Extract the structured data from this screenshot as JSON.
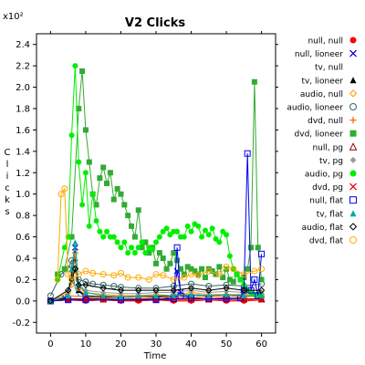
{
  "chart_data": {
    "type": "line",
    "title": "V2 Clicks",
    "xlabel": "Time",
    "ylabel": "Clicks",
    "y_multiplier": "x10²",
    "xlim": [
      -4,
      64
    ],
    "ylim": [
      -0.3,
      2.5
    ],
    "xticks": [
      0,
      10,
      20,
      30,
      40,
      50,
      60
    ],
    "yticks": [
      -0.2,
      0.0,
      0.2,
      0.4,
      0.6,
      0.8,
      1.0,
      1.2,
      1.4,
      1.6,
      1.8,
      2.0,
      2.2,
      2.4
    ],
    "grid": false,
    "legend_position": "right",
    "series": [
      {
        "name": "null, null",
        "color": "#ff0000",
        "marker": "dot",
        "x": [
          0,
          5,
          10,
          15,
          20,
          25,
          30,
          35,
          40,
          45,
          50,
          55,
          60
        ],
        "y": [
          0.0,
          0.01,
          0.0,
          0.01,
          0.0,
          0.0,
          0.01,
          0.0,
          0.0,
          0.01,
          0.0,
          0.0,
          0.01
        ]
      },
      {
        "name": "null, lioneer",
        "color": "#0000dd",
        "marker": "x",
        "x": [
          0,
          4,
          6,
          7,
          8,
          10,
          15,
          20,
          25,
          30,
          35,
          36,
          37,
          40,
          45,
          50,
          55,
          60
        ],
        "y": [
          0.0,
          0.03,
          0.18,
          0.5,
          0.1,
          0.02,
          0.02,
          0.01,
          0.02,
          0.01,
          0.04,
          0.28,
          0.08,
          0.03,
          0.02,
          0.02,
          0.02,
          0.02
        ]
      },
      {
        "name": "tv, null",
        "color": "#00aaaa",
        "marker": "square",
        "x": [
          0,
          5,
          6,
          7,
          8,
          10,
          15,
          20,
          25,
          30,
          35,
          40,
          45,
          50,
          55,
          60
        ],
        "y": [
          0.0,
          0.03,
          0.35,
          0.12,
          0.05,
          0.03,
          0.02,
          0.02,
          0.02,
          0.02,
          0.02,
          0.03,
          0.02,
          0.02,
          0.02,
          0.02
        ]
      },
      {
        "name": "tv, lioneer",
        "color": "#000000",
        "marker": "triangle",
        "x": [
          0,
          5,
          6,
          7,
          8,
          10,
          15,
          20,
          25,
          30,
          35,
          40,
          45,
          50,
          55,
          60
        ],
        "y": [
          0.01,
          0.03,
          0.25,
          0.4,
          0.1,
          0.05,
          0.04,
          0.03,
          0.04,
          0.04,
          0.05,
          0.06,
          0.05,
          0.06,
          0.05,
          0.05
        ]
      },
      {
        "name": "audio, null",
        "color": "#ff9900",
        "marker": "diamond-open",
        "x": [
          0,
          5,
          6,
          7,
          8,
          10,
          15,
          20,
          25,
          30,
          35,
          40,
          45,
          50,
          55,
          60
        ],
        "y": [
          0.0,
          0.08,
          0.15,
          0.45,
          0.12,
          0.08,
          0.06,
          0.05,
          0.05,
          0.06,
          0.05,
          0.08,
          0.06,
          0.06,
          0.06,
          0.06
        ]
      },
      {
        "name": "audio, lioneer",
        "color": "#336666",
        "marker": "circle-open",
        "x": [
          0,
          3,
          5,
          6,
          7,
          8,
          10,
          12,
          15,
          18,
          20,
          25,
          30,
          35,
          40,
          45,
          50,
          55,
          60
        ],
        "y": [
          0.05,
          0.25,
          0.3,
          0.38,
          0.3,
          0.2,
          0.18,
          0.16,
          0.15,
          0.14,
          0.13,
          0.12,
          0.12,
          0.14,
          0.16,
          0.14,
          0.15,
          0.14,
          0.16
        ]
      },
      {
        "name": "dvd, null",
        "color": "#ff6600",
        "marker": "plus",
        "x": [
          0,
          5,
          10,
          15,
          20,
          25,
          30,
          35,
          40,
          45,
          50,
          55,
          60
        ],
        "y": [
          0.0,
          0.05,
          0.04,
          0.03,
          0.03,
          0.04,
          0.03,
          0.04,
          0.05,
          0.04,
          0.05,
          0.04,
          0.05
        ]
      },
      {
        "name": "dvd, lioneer",
        "color": "#33aa33",
        "marker": "square-filled",
        "x": [
          2,
          4,
          6,
          8,
          9,
          10,
          11,
          12,
          13,
          14,
          15,
          16,
          17,
          18,
          19,
          20,
          21,
          22,
          23,
          24,
          25,
          26,
          27,
          28,
          29,
          30,
          31,
          32,
          33,
          34,
          35,
          36,
          37,
          38,
          39,
          40,
          41,
          42,
          43,
          44,
          45,
          46,
          47,
          48,
          49,
          50,
          51,
          52,
          53,
          54,
          55,
          56,
          57,
          58,
          59,
          60
        ],
        "y": [
          0.25,
          0.3,
          0.6,
          1.8,
          2.15,
          1.6,
          1.3,
          1.0,
          0.9,
          1.15,
          1.25,
          1.1,
          1.2,
          0.95,
          1.05,
          1.0,
          0.9,
          0.8,
          0.7,
          0.6,
          0.85,
          0.5,
          0.55,
          0.45,
          0.5,
          0.35,
          0.45,
          0.4,
          0.3,
          0.35,
          0.45,
          0.38,
          0.3,
          0.25,
          0.32,
          0.3,
          0.28,
          0.25,
          0.3,
          0.22,
          0.3,
          0.28,
          0.25,
          0.32,
          0.22,
          0.3,
          0.2,
          0.18,
          0.25,
          0.2,
          0.22,
          0.3,
          0.5,
          2.05,
          0.5,
          0.2
        ]
      },
      {
        "name": "null, pg",
        "color": "#990000",
        "marker": "triangle-open",
        "x": [
          0,
          5,
          10,
          15,
          20,
          25,
          30,
          35,
          40,
          45,
          50,
          55,
          60
        ],
        "y": [
          0.0,
          0.02,
          0.02,
          0.02,
          0.01,
          0.02,
          0.02,
          0.02,
          0.02,
          0.02,
          0.03,
          0.02,
          0.02
        ]
      },
      {
        "name": "tv, pg",
        "color": "#999999",
        "marker": "diamond",
        "x": [
          0,
          5,
          6,
          7,
          8,
          10,
          15,
          20,
          25,
          30,
          35,
          40,
          45,
          50,
          55,
          60
        ],
        "y": [
          0.0,
          0.05,
          0.2,
          0.28,
          0.15,
          0.1,
          0.08,
          0.07,
          0.07,
          0.08,
          0.08,
          0.1,
          0.08,
          0.09,
          0.08,
          0.08
        ]
      },
      {
        "name": "audio, pg",
        "color": "#00ee00",
        "marker": "dot",
        "x": [
          2,
          4,
          5,
          6,
          7,
          8,
          9,
          10,
          11,
          12,
          13,
          14,
          15,
          16,
          17,
          18,
          19,
          20,
          21,
          22,
          23,
          24,
          25,
          26,
          27,
          28,
          29,
          30,
          31,
          32,
          33,
          34,
          35,
          36,
          37,
          38,
          39,
          40,
          41,
          42,
          43,
          44,
          45,
          46,
          47,
          48,
          49,
          50,
          51,
          52,
          53,
          54,
          55,
          56,
          57,
          58,
          59,
          60
        ],
        "y": [
          0.2,
          0.5,
          0.6,
          1.55,
          2.2,
          1.3,
          0.9,
          1.2,
          0.7,
          1.0,
          0.75,
          0.65,
          0.6,
          0.65,
          0.6,
          0.6,
          0.55,
          0.5,
          0.55,
          0.45,
          0.5,
          0.45,
          0.5,
          0.55,
          0.45,
          0.5,
          0.48,
          0.55,
          0.6,
          0.65,
          0.68,
          0.62,
          0.65,
          0.65,
          0.6,
          0.6,
          0.7,
          0.65,
          0.72,
          0.7,
          0.6,
          0.66,
          0.62,
          0.68,
          0.58,
          0.55,
          0.65,
          0.62,
          0.42,
          0.3,
          0.25,
          0.2,
          0.15,
          0.1,
          0.08,
          0.06,
          0.05,
          0.05
        ]
      },
      {
        "name": "dvd, pg",
        "color": "#ee0000",
        "marker": "x",
        "x": [
          0,
          5,
          10,
          15,
          20,
          25,
          30,
          35,
          40,
          45,
          50,
          55,
          60
        ],
        "y": [
          0.0,
          0.01,
          0.01,
          0.01,
          0.01,
          0.01,
          0.01,
          0.01,
          0.01,
          0.01,
          0.01,
          0.01,
          0.01
        ]
      },
      {
        "name": "null, flat",
        "color": "#0000ee",
        "marker": "square-open",
        "x": [
          0,
          5,
          10,
          20,
          30,
          35,
          36,
          37,
          40,
          45,
          50,
          54,
          55,
          56,
          57,
          58,
          59,
          60
        ],
        "y": [
          0.0,
          0.01,
          0.01,
          0.01,
          0.01,
          0.02,
          0.5,
          0.05,
          0.03,
          0.02,
          0.02,
          0.03,
          0.1,
          1.38,
          0.1,
          0.2,
          0.05,
          0.44
        ]
      },
      {
        "name": "tv, flat",
        "color": "#00aaaa",
        "marker": "triangle",
        "x": [
          0,
          5,
          6,
          7,
          8,
          10,
          15,
          20,
          25,
          30,
          35,
          40,
          45,
          50,
          55,
          60
        ],
        "y": [
          0.0,
          0.05,
          0.3,
          0.55,
          0.15,
          0.08,
          0.05,
          0.04,
          0.05,
          0.05,
          0.05,
          0.06,
          0.05,
          0.06,
          0.05,
          0.05
        ]
      },
      {
        "name": "audio, flat",
        "color": "#000000",
        "marker": "diamond-open",
        "x": [
          0,
          5,
          6,
          7,
          8,
          10,
          15,
          20,
          25,
          30,
          35,
          40,
          45,
          50,
          55,
          60
        ],
        "y": [
          0.0,
          0.1,
          0.2,
          0.3,
          0.15,
          0.15,
          0.12,
          0.1,
          0.1,
          0.1,
          0.1,
          0.12,
          0.1,
          0.12,
          0.1,
          0.1
        ]
      },
      {
        "name": "dvd, flat",
        "color": "#ffaa00",
        "marker": "circle-open",
        "x": [
          2,
          3,
          4,
          5,
          6,
          8,
          10,
          12,
          15,
          18,
          20,
          22,
          25,
          28,
          30,
          32,
          35,
          38,
          40,
          42,
          45,
          48,
          50,
          52,
          55,
          58,
          60
        ],
        "y": [
          0.2,
          1.0,
          1.05,
          0.25,
          0.2,
          0.25,
          0.28,
          0.26,
          0.25,
          0.24,
          0.26,
          0.22,
          0.22,
          0.2,
          0.25,
          0.24,
          0.2,
          0.22,
          0.25,
          0.24,
          0.28,
          0.25,
          0.32,
          0.3,
          0.25,
          0.28,
          0.3
        ]
      }
    ]
  }
}
